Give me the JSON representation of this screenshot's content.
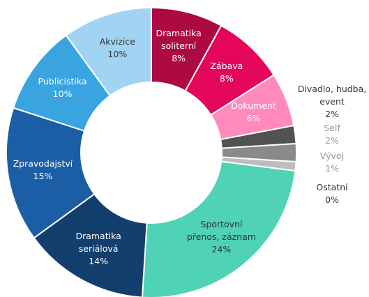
{
  "chart_data": {
    "type": "donut",
    "categories": [
      "Dramatika soliterní",
      "Zábava",
      "Dokument",
      "Divadlo, hudba, event",
      "Self",
      "Vývoj",
      "Ostatní",
      "Sportovní přenos, záznam",
      "Dramatika seriálová",
      "Zpravodajství",
      "Publicistika",
      "Akvizice"
    ],
    "values": [
      8,
      8,
      6,
      2,
      2,
      1,
      0,
      24,
      14,
      15,
      10,
      10
    ],
    "value_labels": [
      "8%",
      "8%",
      "6%",
      "2%",
      "2%",
      "1%",
      "0%",
      "24%",
      "14%",
      "15%",
      "10%",
      "10%"
    ],
    "colors": [
      "#ad0a44",
      "#e3065b",
      "#ff8abb",
      "#525252",
      "#8a8a8a",
      "#bdbdbd",
      "#dcdcdc",
      "#4fd2b5",
      "#123f6d",
      "#1b5ea5",
      "#3aa4e1",
      "#a1d4f2"
    ]
  }
}
